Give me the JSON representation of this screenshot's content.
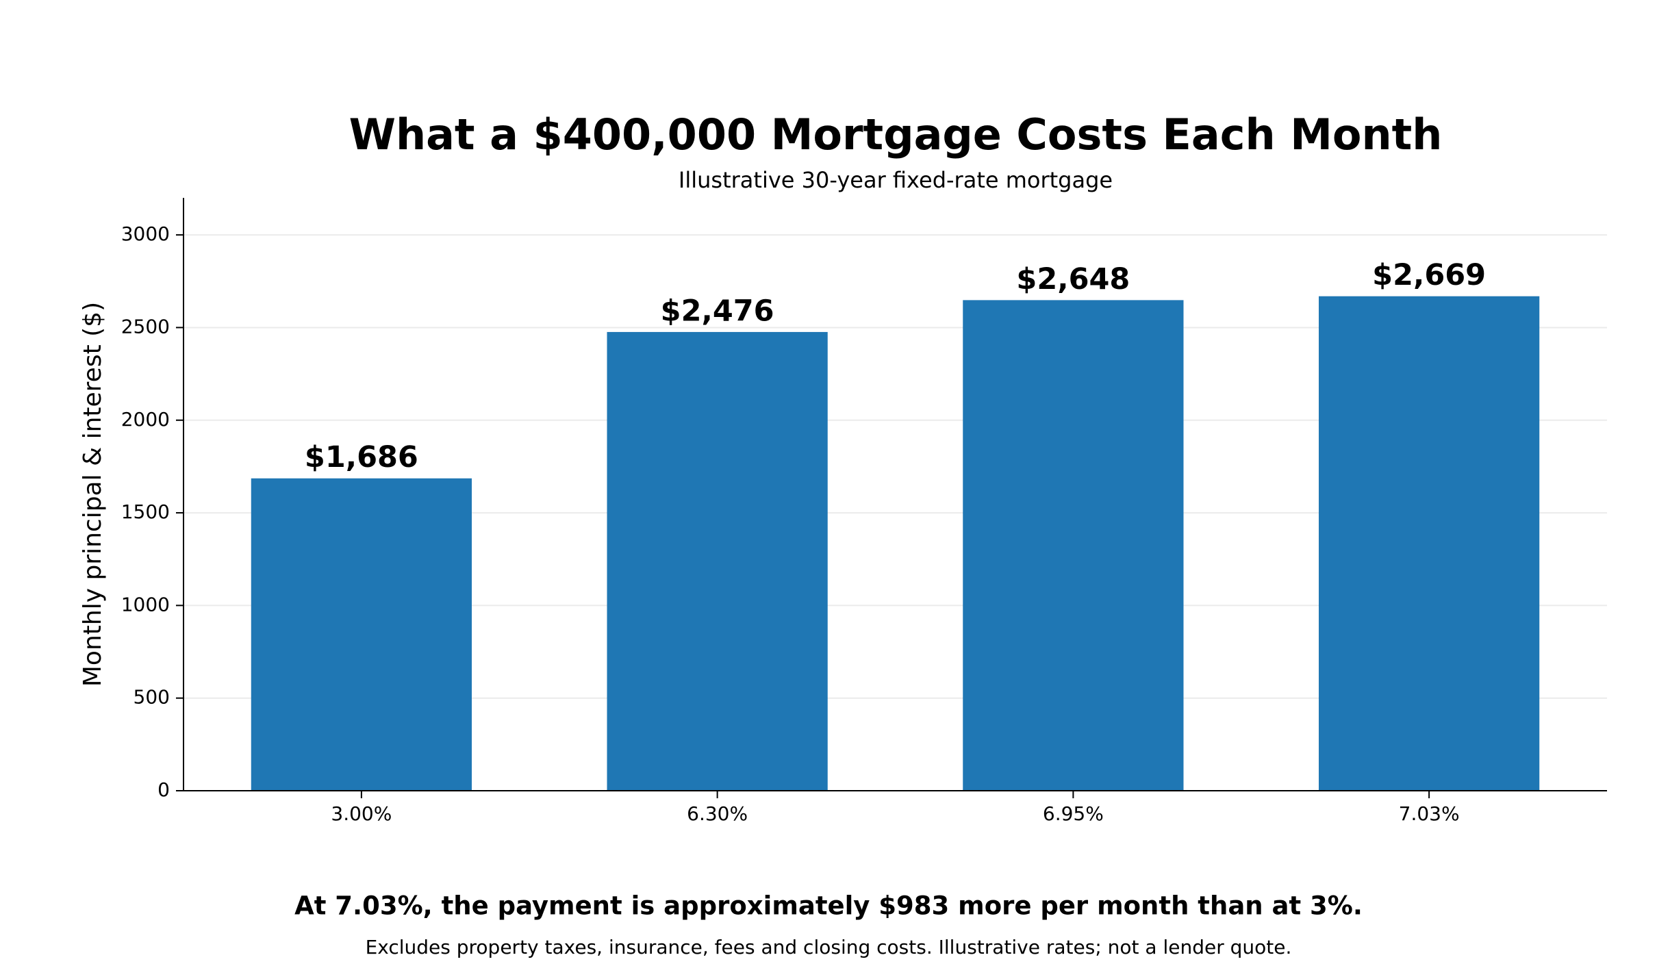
{
  "chart_data": {
    "type": "bar",
    "title": "What a $400,000 Mortgage Costs Each Month",
    "subtitle": "Illustrative 30-year fixed-rate mortgage",
    "y_label": "Monthly principal & interest ($)",
    "categories": [
      "3.00%",
      "6.30%",
      "6.95%",
      "7.03%"
    ],
    "values": [
      1686,
      2476,
      2648,
      2669
    ],
    "value_labels": [
      "$1,686",
      "$2,476",
      "$2,648",
      "$2,669"
    ],
    "color": "#1f77b4",
    "ylim": [
      0,
      3200
    ],
    "yticks": [
      0,
      500,
      1000,
      1500,
      2000,
      2500,
      3000
    ],
    "grid": true,
    "annotation": "At 7.03%, the payment is approximately $983 more per month than at 3%.",
    "footnote": "Excludes property taxes, insurance, fees and closing costs. Illustrative rates; not a lender quote."
  }
}
